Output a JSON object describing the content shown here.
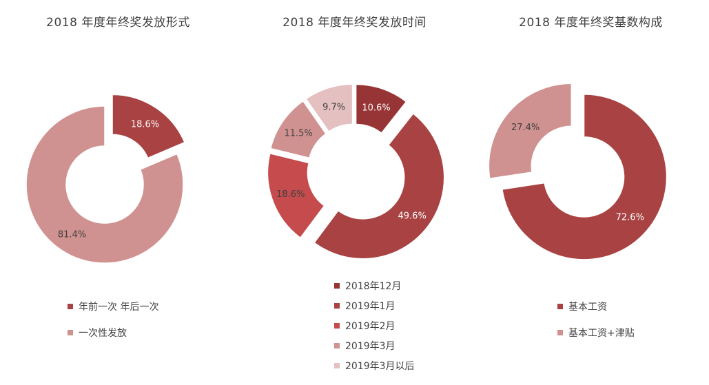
{
  "chart_data": [
    {
      "type": "pie",
      "title": "2018 年度年终奖发放形式",
      "categories": [
        "年前一次 年后一次",
        "一次性发放"
      ],
      "values": [
        18.6,
        81.4
      ],
      "data_labels": [
        "18.6%",
        "81.4%"
      ],
      "colors": [
        "#a94243",
        "#d09291"
      ],
      "donut": true,
      "legend_position": "bottom"
    },
    {
      "type": "pie",
      "title": "2018 年度年终奖发放时间",
      "categories": [
        "2018年12月",
        "2019年1月",
        "2019年2月",
        "2019年3月",
        "2019年3月以后"
      ],
      "values": [
        10.6,
        49.6,
        18.6,
        11.5,
        9.7
      ],
      "data_labels": [
        "10.6%",
        "49.6%",
        "18.6%",
        "11.5%",
        "9.7%"
      ],
      "colors": [
        "#973536",
        "#a94243",
        "#c54b4c",
        "#d09291",
        "#e4c0c1"
      ],
      "donut": true,
      "legend_position": "bottom"
    },
    {
      "type": "pie",
      "title": "2018 年度年终奖基数构成",
      "categories": [
        "基本工资",
        "基本工资+津贴"
      ],
      "values": [
        72.6,
        27.4
      ],
      "data_labels": [
        "72.6%",
        "27.4%"
      ],
      "colors": [
        "#a94243",
        "#d09291"
      ],
      "donut": true,
      "legend_position": "bottom"
    }
  ]
}
